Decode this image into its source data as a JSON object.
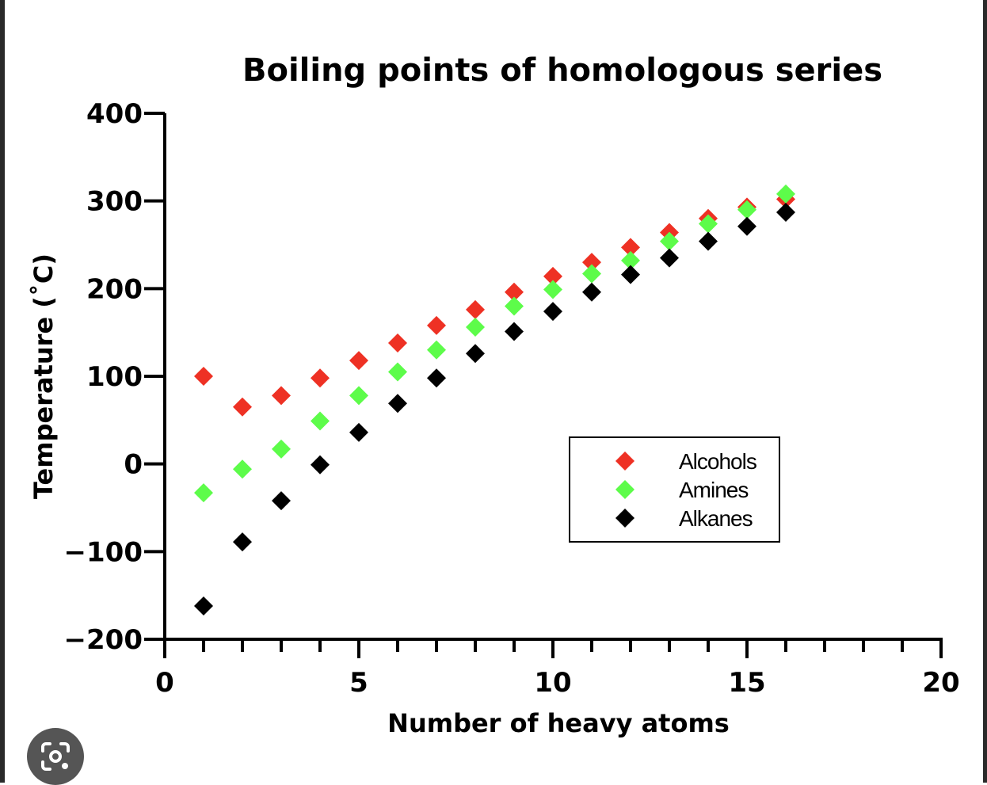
{
  "chart_data": {
    "type": "scatter",
    "title": "Boiling points of homologous series",
    "xlabel": "Number of heavy atoms",
    "ylabel": "Temperature (˚C)",
    "xlim": [
      0,
      20
    ],
    "ylim": [
      -200,
      400
    ],
    "x_ticks": [
      0,
      5,
      10,
      15,
      20
    ],
    "x_tick_labels": [
      "0",
      "5",
      "10",
      "15",
      "20"
    ],
    "y_ticks": [
      -200,
      -100,
      0,
      100,
      200,
      300,
      400
    ],
    "y_tick_labels": [
      "−200",
      "−100",
      "0",
      "100",
      "200",
      "300",
      "400"
    ],
    "grid": false,
    "legend_position": "center-right",
    "series": [
      {
        "name": "Alcohols",
        "color": "#ee3124",
        "marker": "diamond",
        "x": [
          1,
          2,
          3,
          4,
          5,
          6,
          7,
          8,
          9,
          10,
          11,
          12,
          13,
          14,
          15,
          16
        ],
        "y": [
          100,
          65,
          78,
          98,
          118,
          138,
          158,
          176,
          196,
          214,
          230,
          247,
          264,
          280,
          293,
          302
        ]
      },
      {
        "name": "Amines",
        "color": "#5dfc4a",
        "marker": "diamond",
        "x": [
          1,
          2,
          3,
          4,
          5,
          6,
          7,
          8,
          9,
          10,
          11,
          12,
          13,
          14,
          15,
          16
        ],
        "y": [
          -33,
          -6,
          17,
          49,
          78,
          105,
          130,
          156,
          180,
          199,
          217,
          232,
          254,
          274,
          290,
          308
        ]
      },
      {
        "name": "Alkanes",
        "color": "#000000",
        "marker": "diamond",
        "x": [
          1,
          2,
          3,
          4,
          5,
          6,
          7,
          8,
          9,
          10,
          11,
          12,
          13,
          14,
          15,
          16
        ],
        "y": [
          -162,
          -89,
          -42,
          -1,
          36,
          69,
          98,
          126,
          151,
          174,
          196,
          216,
          235,
          254,
          271,
          287
        ]
      }
    ]
  },
  "overlay": {
    "lens_icon": "visual-search-icon"
  }
}
